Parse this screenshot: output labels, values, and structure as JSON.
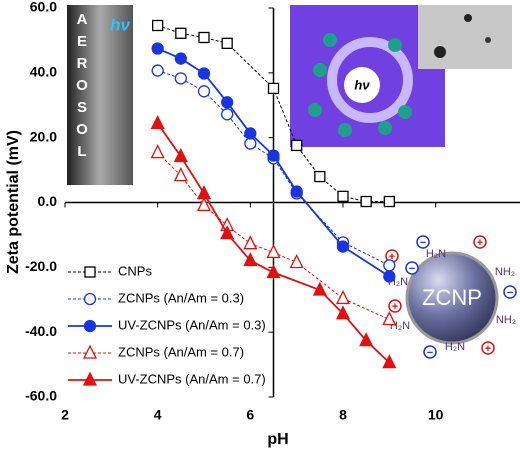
{
  "chart_data": {
    "type": "line",
    "x_label": "pH",
    "y_label": "Zeta potential (mV)",
    "xlim": [
      2,
      11
    ],
    "ylim": [
      -60,
      60
    ],
    "xticks": [
      2,
      4,
      6,
      8,
      10
    ],
    "yticks": [
      {
        "value": 60,
        "label": "60.0"
      },
      {
        "value": 40,
        "label": "40.0"
      },
      {
        "value": 20,
        "label": "20.0"
      },
      {
        "value": 0,
        "label": "0.0"
      },
      {
        "value": -20,
        "label": "-20.0"
      },
      {
        "value": -40,
        "label": "-40.0"
      },
      {
        "value": -60,
        "label": "-60.0"
      }
    ],
    "y_axis_crosses_x": 6.5,
    "legend_position": "lower left",
    "series": [
      {
        "name": "CNPs",
        "color": "#000000",
        "marker": "square",
        "filled": false,
        "dashed": true,
        "x": [
          4,
          4.5,
          5,
          5.5,
          6.5,
          7,
          7.5,
          8,
          8.5,
          9
        ],
        "values": [
          54.6,
          52.2,
          50.9,
          49.1,
          35.2,
          17.6,
          8.0,
          1.9,
          0.3,
          0.3
        ]
      },
      {
        "name": "ZCNPs (An/Am = 0.3)",
        "color": "#1a35e0",
        "marker": "circle",
        "filled": false,
        "dashed": true,
        "x": [
          4,
          4.5,
          5,
          5.5,
          6,
          6.5,
          7,
          8,
          9
        ],
        "values": [
          40.7,
          38.3,
          34.3,
          27.2,
          18.2,
          13.6,
          2.8,
          -12.3,
          -19.4
        ]
      },
      {
        "name": "UV-ZCNPs (An/Am = 0.3)",
        "color": "#1a35e0",
        "marker": "circle",
        "filled": true,
        "dashed": false,
        "x": [
          4,
          4.5,
          5,
          5.5,
          6,
          6.5,
          7,
          8,
          9
        ],
        "values": [
          47.5,
          44.4,
          39.8,
          30.9,
          21.3,
          14.5,
          3.4,
          -13.6,
          -22.8
        ]
      },
      {
        "name": "ZCNPs (An/Am = 0.7)",
        "color": "#e01010",
        "marker": "triangle",
        "filled": false,
        "dashed": true,
        "x": [
          4,
          4.5,
          5,
          5.5,
          6,
          6.5,
          7,
          8,
          9
        ],
        "values": [
          15.4,
          8.3,
          -0.9,
          -7.1,
          -12.7,
          -15.4,
          -18.5,
          -29.6,
          -36.1
        ]
      },
      {
        "name": "UV-ZCNPs (An/Am = 0.7)",
        "color": "#e01010",
        "marker": "triangle",
        "filled": true,
        "dashed": false,
        "x": [
          4,
          4.5,
          5,
          5.5,
          6,
          6.5,
          7.5,
          8,
          8.5,
          9
        ],
        "values": [
          24.4,
          14.2,
          2.8,
          -9.6,
          -17.9,
          -21.6,
          -27.0,
          -34.3,
          -42.6,
          -49.4
        ]
      }
    ],
    "annotations": {
      "aerosol": [
        "A",
        "E",
        "R",
        "O",
        "S",
        "O",
        "L"
      ],
      "light": "hν",
      "particle": "ZCNP",
      "amine_left": "H₂N",
      "amine_right": "NH₂",
      "plus": "+",
      "minus": "−"
    }
  }
}
